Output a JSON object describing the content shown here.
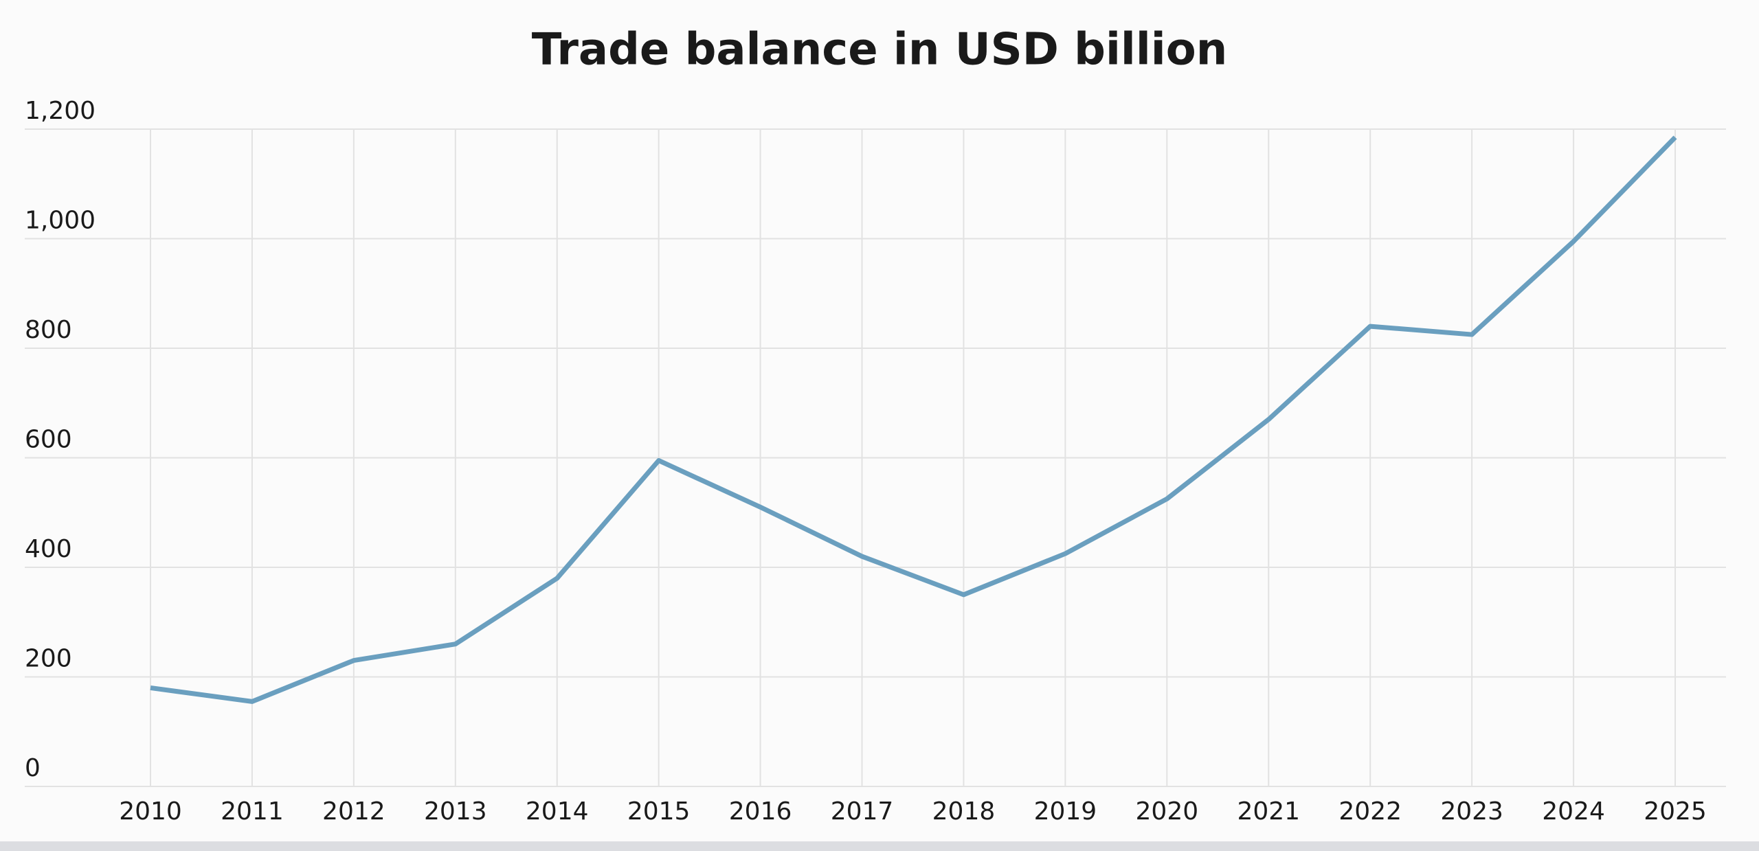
{
  "chart_data": {
    "type": "line",
    "title": "Trade balance in USD billion",
    "categories": [
      "2010",
      "2011",
      "2012",
      "2013",
      "2014",
      "2015",
      "2016",
      "2017",
      "2018",
      "2019",
      "2020",
      "2021",
      "2022",
      "2023",
      "2024",
      "2025"
    ],
    "series": [
      {
        "name": "Trade balance",
        "color": "#6a9fbf",
        "values": [
          180,
          155,
          230,
          260,
          380,
          595,
          510,
          420,
          350,
          425,
          525,
          670,
          840,
          825,
          995,
          1185
        ]
      }
    ],
    "ylim": [
      0,
      1200
    ],
    "yticks": [
      0,
      200,
      400,
      600,
      800,
      {
        "value": 1000,
        "label": "1,000"
      },
      {
        "value": 1200,
        "label": "1,200"
      }
    ],
    "grid": true
  }
}
